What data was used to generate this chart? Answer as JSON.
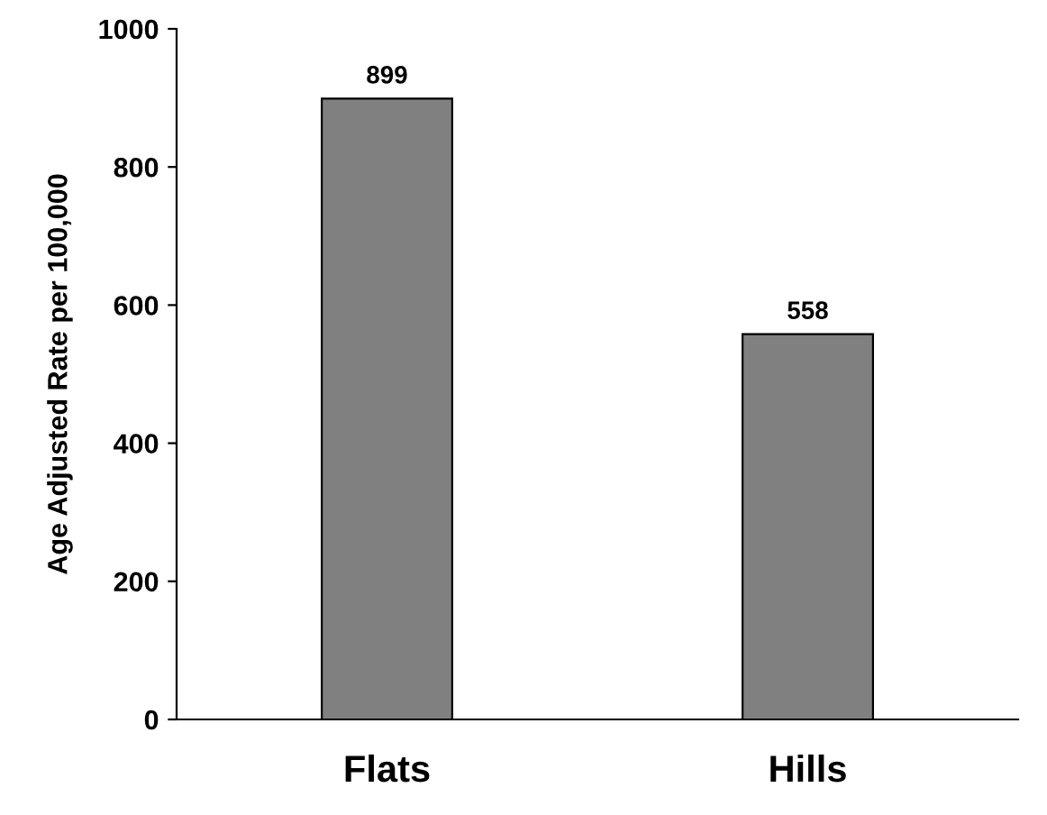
{
  "chart_data": {
    "type": "bar",
    "ylabel": "Age Adjusted Rate per 100,000",
    "categories": [
      "Flats",
      "Hills"
    ],
    "values": [
      899,
      558
    ],
    "color": "#808080",
    "ylim": [
      0,
      1000
    ],
    "yticks": [
      0,
      200,
      400,
      600,
      800,
      1000
    ],
    "grid": false,
    "data_labels": true
  }
}
